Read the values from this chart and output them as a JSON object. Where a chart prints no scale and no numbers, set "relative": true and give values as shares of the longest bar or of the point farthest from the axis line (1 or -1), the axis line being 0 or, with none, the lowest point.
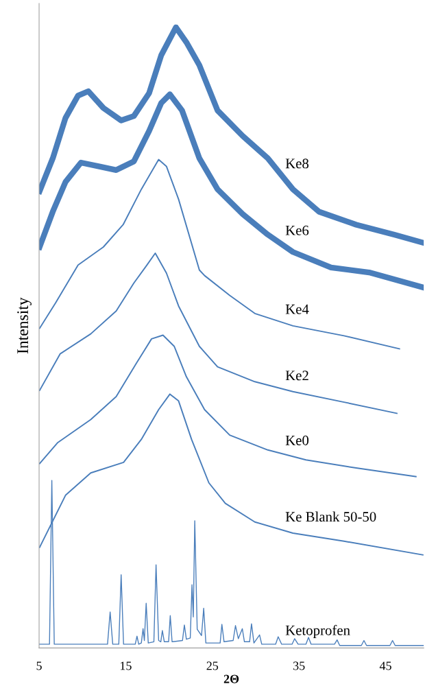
{
  "chart_data": {
    "type": "line",
    "relative": true,
    "xlabel": "2Θ",
    "ylabel": "Intensity",
    "xlim": [
      5,
      49.4
    ],
    "xticks": [
      5,
      15,
      25,
      35,
      45
    ],
    "grid": false,
    "legend": false,
    "marker": "none",
    "line_style": "solid",
    "series": [
      {
        "name": "Ke8",
        "color": "#4a7ebb",
        "x": [
          5.06,
          6.58,
          8.05,
          9.5,
          10.68,
          12.42,
          14.47,
          15.94,
          17.7,
          19.1,
          20.8,
          22.0,
          23.5,
          25.6,
          28.5,
          31.4,
          34.3,
          37.3,
          41.6,
          46.0,
          49.3
        ],
        "values": [
          0.736,
          0.789,
          0.854,
          0.89,
          0.897,
          0.87,
          0.85,
          0.857,
          0.894,
          0.955,
          1.0,
          0.976,
          0.939,
          0.866,
          0.825,
          0.789,
          0.739,
          0.703,
          0.682,
          0.666,
          0.653
        ]
      },
      {
        "name": "Ke6",
        "color": "#4a7ebb",
        "x": [
          5.06,
          6.58,
          8.05,
          9.83,
          11.86,
          13.9,
          15.94,
          17.7,
          19.1,
          20.1,
          21.5,
          23.5,
          25.6,
          28.5,
          31.4,
          34.3,
          38.7,
          43.1,
          49.3
        ],
        "values": [
          0.646,
          0.703,
          0.751,
          0.782,
          0.776,
          0.77,
          0.784,
          0.833,
          0.878,
          0.892,
          0.866,
          0.789,
          0.739,
          0.699,
          0.666,
          0.638,
          0.613,
          0.605,
          0.581
        ]
      },
      {
        "name": "Ke4",
        "color": "#4a7ebb",
        "x": [
          5.06,
          6.9,
          9.5,
          12.42,
          14.7,
          16.8,
          18.8,
          19.7,
          21.1,
          23.5,
          24.1,
          27.0,
          29.9,
          34.3,
          40.2,
          46.6
        ],
        "values": [
          0.515,
          0.556,
          0.617,
          0.646,
          0.682,
          0.739,
          0.787,
          0.776,
          0.723,
          0.609,
          0.6,
          0.568,
          0.539,
          0.519,
          0.503,
          0.482
        ]
      },
      {
        "name": "Ke2",
        "color": "#4a7ebb",
        "x": [
          5.06,
          7.44,
          10.96,
          13.9,
          15.94,
          17.4,
          18.41,
          19.7,
          21.1,
          23.5,
          25.6,
          29.9,
          34.3,
          40.2,
          46.3
        ],
        "values": [
          0.415,
          0.474,
          0.506,
          0.543,
          0.588,
          0.616,
          0.636,
          0.604,
          0.551,
          0.486,
          0.453,
          0.429,
          0.413,
          0.396,
          0.378
        ]
      },
      {
        "name": "Ke0",
        "color": "#4a7ebb",
        "x": [
          5.06,
          7.16,
          10.96,
          13.9,
          16.2,
          17.98,
          19.3,
          20.6,
          22.0,
          24.1,
          27.0,
          31.4,
          35.8,
          41.6,
          48.5
        ],
        "values": [
          0.297,
          0.331,
          0.368,
          0.405,
          0.458,
          0.498,
          0.504,
          0.486,
          0.437,
          0.384,
          0.343,
          0.319,
          0.303,
          0.29,
          0.276
        ]
      },
      {
        "name": "Ke Blank 50-50",
        "color": "#4a7ebb",
        "x": [
          5.06,
          8.05,
          10.96,
          14.75,
          16.8,
          18.8,
          20.1,
          21.1,
          22.6,
          24.6,
          26.5,
          29.9,
          34.3,
          40.2,
          49.3
        ],
        "values": [
          0.162,
          0.246,
          0.282,
          0.299,
          0.336,
          0.384,
          0.409,
          0.398,
          0.336,
          0.266,
          0.233,
          0.203,
          0.185,
          0.172,
          0.15
        ]
      },
      {
        "name": "Ketoprofen",
        "color": "#4a7ebb",
        "x": [
          5.0,
          6.2,
          6.47,
          6.75,
          12.9,
          13.2,
          13.5,
          14.2,
          14.47,
          14.75,
          16.1,
          16.3,
          16.5,
          16.8,
          17.0,
          17.15,
          17.36,
          17.6,
          18.25,
          18.5,
          18.8,
          19.05,
          19.23,
          19.45,
          19.95,
          20.14,
          20.35,
          21.55,
          21.77,
          22.0,
          22.45,
          22.65,
          22.8,
          22.97,
          23.25,
          23.75,
          24.0,
          24.25,
          25.9,
          26.1,
          26.35,
          27.4,
          27.67,
          28.0,
          28.46,
          28.7,
          29.3,
          29.52,
          29.8,
          30.45,
          30.7,
          32.3,
          32.6,
          33.0,
          34.2,
          34.5,
          34.9,
          35.8,
          36.1,
          36.4,
          39.1,
          39.4,
          39.7,
          42.2,
          42.5,
          42.8,
          45.5,
          45.8,
          46.1,
          49.4
        ],
        "values": [
          0.006,
          0.006,
          0.27,
          0.006,
          0.006,
          0.058,
          0.006,
          0.006,
          0.118,
          0.006,
          0.006,
          0.019,
          0.006,
          0.008,
          0.031,
          0.012,
          0.072,
          0.008,
          0.01,
          0.134,
          0.012,
          0.01,
          0.028,
          0.01,
          0.01,
          0.052,
          0.01,
          0.012,
          0.037,
          0.014,
          0.016,
          0.102,
          0.05,
          0.205,
          0.03,
          0.02,
          0.064,
          0.008,
          0.008,
          0.038,
          0.01,
          0.012,
          0.036,
          0.015,
          0.031,
          0.01,
          0.01,
          0.039,
          0.008,
          0.021,
          0.006,
          0.006,
          0.018,
          0.006,
          0.006,
          0.015,
          0.006,
          0.006,
          0.017,
          0.006,
          0.006,
          0.013,
          0.004,
          0.004,
          0.012,
          0.004,
          0.004,
          0.012,
          0.004,
          0.004
        ]
      }
    ]
  }
}
